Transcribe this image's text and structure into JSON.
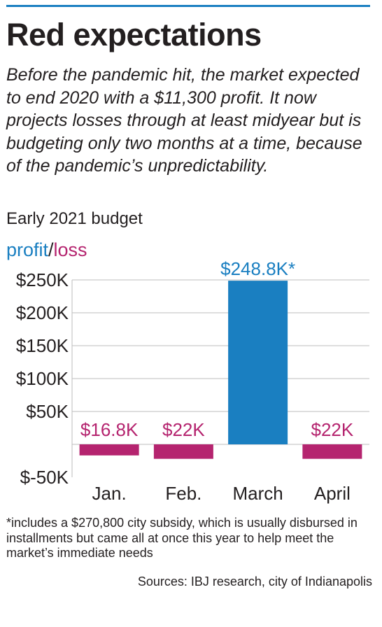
{
  "header": {
    "title": "Red expectations",
    "subtitle": "Before the pandemic hit, the market expected to end 2020 with a $11,300 profit. It now projects losses through at least midyear but is budgeting only two months at a time, because of the pandemic’s unpredictability."
  },
  "legend": {
    "profit": "profit",
    "separator": "/",
    "loss": "loss"
  },
  "chart_data": {
    "type": "bar",
    "title": "Early 2021 budget",
    "categories": [
      "Jan.",
      "Feb.",
      "March",
      "April"
    ],
    "values": [
      -16800,
      -22000,
      248800,
      -22000
    ],
    "data_labels": [
      "$16.8K",
      "$22K",
      "$248.8K*",
      "$22K"
    ],
    "ylim": [
      -50000,
      250000
    ],
    "yticks": [
      -50000,
      50000,
      100000,
      150000,
      200000,
      250000
    ],
    "ytick_labels": [
      "$-50K",
      "$50K",
      "$100K",
      "$150K",
      "$200K",
      "$250K"
    ],
    "grid": true,
    "colors": {
      "profit": "#1a7fc1",
      "loss": "#b5246f",
      "grid": "#bdbdbd",
      "text": "#231f20"
    }
  },
  "footnote": "*includes a $270,800 city subsidy, which is usually disbursed in installments but came all at once this year to help meet the market’s immediate needs",
  "sources": "Sources: IBJ research, city of Indianapolis"
}
